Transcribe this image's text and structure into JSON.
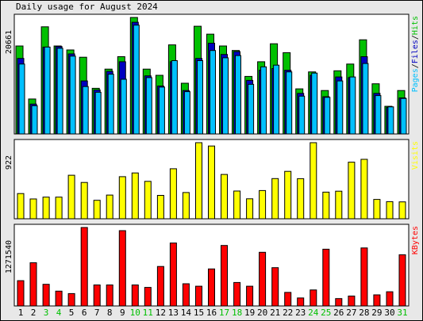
{
  "chart_data": {
    "type": "bar",
    "title": "Daily usage for August 2024",
    "categories": [
      "1",
      "2",
      "3",
      "4",
      "5",
      "6",
      "7",
      "8",
      "9",
      "10",
      "11",
      "12",
      "13",
      "14",
      "15",
      "16",
      "17",
      "18",
      "19",
      "20",
      "21",
      "22",
      "23",
      "24",
      "25",
      "26",
      "27",
      "28",
      "29",
      "30",
      "31"
    ],
    "weekend_days": [
      "3",
      "4",
      "10",
      "11",
      "17",
      "18",
      "24",
      "25",
      "31"
    ],
    "panels": [
      {
        "id": "hits-files-pages",
        "max_label": "20661",
        "legend": [
          "Pages",
          "Files",
          "Hits"
        ],
        "series": [
          {
            "name": "Hits",
            "color": "#00c000",
            "values": [
              15600,
              6200,
              19000,
              15600,
              14900,
              13600,
              8100,
              11500,
              13700,
              20661,
              11500,
              10400,
              15800,
              9000,
              19100,
              17700,
              15600,
              14800,
              10200,
              12800,
              16000,
              14400,
              8000,
              11000,
              7700,
              11200,
              12400,
              16700,
              8900,
              4900,
              7700
            ]
          },
          {
            "name": "Files",
            "color": "#0000c0",
            "values": [
              13400,
              5300,
              15400,
              15500,
              14200,
              9400,
              7800,
              11100,
              12800,
              19800,
              10300,
              8500,
              12800,
              7700,
              13400,
              16100,
              14100,
              14600,
              9500,
              11300,
              11600,
              11300,
              7200,
              10400,
              6600,
              10100,
              10000,
              13700,
              7200,
              4700,
              6400
            ]
          },
          {
            "name": "Pages",
            "color": "#00c0ff",
            "values": [
              12400,
              5000,
              15400,
              15200,
              13800,
              8400,
              7400,
              10600,
              9700,
              19300,
              10000,
              8300,
              13000,
              7500,
              13000,
              14800,
              13500,
              13900,
              8800,
              11900,
              12200,
              11000,
              6700,
              10800,
              6500,
              9400,
              10100,
              12500,
              6800,
              4800,
              6300
            ]
          }
        ]
      },
      {
        "id": "visits",
        "max_label": "922",
        "legend": [
          "Visits"
        ],
        "series": [
          {
            "name": "Visits",
            "color": "#ffff00",
            "values": [
              305,
              240,
              262,
              262,
              527,
              440,
              224,
              287,
              510,
              555,
              453,
              283,
              606,
              318,
              922,
              882,
              537,
              336,
              242,
              342,
              487,
              574,
              486,
              922,
              323,
              334,
              686,
              720,
              234,
              207,
              205
            ]
          }
        ]
      },
      {
        "id": "kbytes",
        "max_label": "1271540",
        "legend": [
          "KBytes"
        ],
        "series": [
          {
            "name": "KBytes",
            "color": "#ff0000",
            "values": [
              410000,
              700000,
              350000,
              240000,
              200000,
              1271540,
              340000,
              340000,
              1220000,
              340000,
              300000,
              640000,
              1020000,
              360000,
              320000,
              600000,
              980000,
              380000,
              320000,
              870000,
              620000,
              220000,
              130000,
              260000,
              920000,
              120000,
              160000,
              940000,
              180000,
              230000,
              830000
            ]
          }
        ]
      }
    ],
    "colors": {
      "axis_text": "#000000",
      "weekday": "#000000",
      "weekend": "#00c000",
      "background": "#e8e8e8",
      "plot_bg": "#ffffff"
    }
  }
}
